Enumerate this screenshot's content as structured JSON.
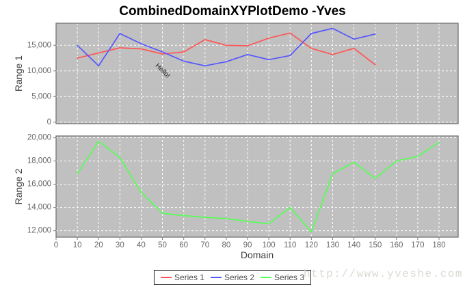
{
  "watermark": "http://www.yveshe.com",
  "chart_data": {
    "type": "line",
    "title": "CombinedDomainXYPlotDemo -Yves",
    "xlabel": "Domain",
    "xlim": [
      0,
      189
    ],
    "xticks": [
      0,
      10,
      20,
      30,
      40,
      50,
      60,
      70,
      80,
      90,
      100,
      110,
      120,
      130,
      140,
      150,
      160,
      170,
      180
    ],
    "grid": true,
    "plot_background": "#c0c0c0",
    "grid_color": "#ffffff",
    "plot_border_color": "#747474",
    "tick_color": "#7e7e7e",
    "tick_label_color": "#666666",
    "axis_label_color": "#404040",
    "legend_position": "bottom",
    "subplots": [
      {
        "ylabel": "Range 1",
        "ylim": [
          -300,
          19300
        ],
        "yticks": [
          0,
          5000,
          10000,
          15000
        ],
        "series": [
          {
            "name": "Series 1",
            "color": "#ff5555",
            "points": [
              [
                10,
                12500
              ],
              [
                20,
                13500
              ],
              [
                30,
                14500
              ],
              [
                40,
                14300
              ],
              [
                50,
                13300
              ],
              [
                60,
                13700
              ],
              [
                70,
                16100
              ],
              [
                80,
                15000
              ],
              [
                90,
                14900
              ],
              [
                100,
                16400
              ],
              [
                110,
                17400
              ],
              [
                120,
                14400
              ],
              [
                130,
                13200
              ],
              [
                140,
                14400
              ],
              [
                150,
                11200
              ]
            ]
          },
          {
            "name": "Series 2",
            "color": "#5555ff",
            "points": [
              [
                10,
                15000
              ],
              [
                20,
                11000
              ],
              [
                30,
                17300
              ],
              [
                40,
                15300
              ],
              [
                50,
                13700
              ],
              [
                60,
                11900
              ],
              [
                70,
                11000
              ],
              [
                80,
                11800
              ],
              [
                90,
                13200
              ],
              [
                100,
                12200
              ],
              [
                110,
                13000
              ],
              [
                120,
                17300
              ],
              [
                130,
                18300
              ],
              [
                140,
                16200
              ],
              [
                150,
                17200
              ]
            ]
          }
        ],
        "annotations": [
          {
            "text": "Hello!",
            "x": 50,
            "y": 10000,
            "rotation_deg": 45,
            "color": "#1a1a1a"
          }
        ]
      },
      {
        "ylabel": "Range 2",
        "ylim": [
          11450,
          20150
        ],
        "yticks": [
          12000,
          14000,
          16000,
          18000,
          20000
        ],
        "series": [
          {
            "name": "Series 3",
            "color": "#55ff55",
            "points": [
              [
                10,
                16900
              ],
              [
                20,
                19700
              ],
              [
                30,
                18300
              ],
              [
                40,
                15300
              ],
              [
                50,
                13500
              ],
              [
                60,
                13300
              ],
              [
                70,
                13150
              ],
              [
                80,
                13050
              ],
              [
                90,
                12800
              ],
              [
                100,
                12600
              ],
              [
                110,
                14000
              ],
              [
                120,
                11900
              ],
              [
                130,
                16900
              ],
              [
                140,
                17900
              ],
              [
                150,
                16500
              ],
              [
                160,
                18000
              ],
              [
                170,
                18400
              ],
              [
                180,
                19600
              ]
            ]
          }
        ],
        "annotations": []
      }
    ]
  }
}
